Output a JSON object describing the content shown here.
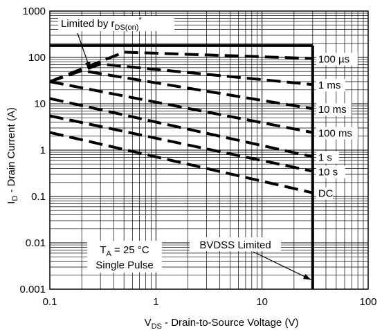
{
  "chart_data": {
    "type": "line",
    "x_scale": "log",
    "y_scale": "log",
    "xlim": [
      0.1,
      100
    ],
    "ylim": [
      0.001,
      1000
    ],
    "x_ticks": [
      "0.1",
      "1",
      "10",
      "100"
    ],
    "y_ticks": [
      "1000",
      "100",
      "10",
      "1",
      "0.1",
      "0.01",
      "0.001"
    ],
    "xlabel": {
      "main": "V",
      "sub": "DS",
      "rest": " -  Drain-to-Source Voltage (V)"
    },
    "ylabel": {
      "main": "I",
      "sub": "D",
      "rest": " -  Drain Current (A)"
    },
    "grid": true,
    "limits": [
      {
        "kind": "current",
        "points": [
          [
            0.1,
            180
          ],
          [
            30,
            180
          ]
        ]
      },
      {
        "kind": "voltage",
        "points": [
          [
            30,
            180
          ],
          [
            30,
            0.001
          ]
        ]
      }
    ],
    "series": [
      {
        "name": "100 µs",
        "label": "100 µs",
        "points": [
          [
            0.1,
            30
          ],
          [
            0.5,
            130
          ],
          [
            30,
            95
          ]
        ]
      },
      {
        "name": "1 ms",
        "label": "1 ms",
        "points": [
          [
            0.1,
            30
          ],
          [
            0.3,
            72
          ],
          [
            30,
            26
          ]
        ]
      },
      {
        "name": "10 ms",
        "label": "10 ms",
        "points": [
          [
            0.1,
            30
          ],
          [
            0.2,
            52
          ],
          [
            30,
            7.8
          ]
        ]
      },
      {
        "name": "100 ms",
        "label": "100 ms",
        "points": [
          [
            0.1,
            30
          ],
          [
            30,
            2.4
          ]
        ]
      },
      {
        "name": "1 s",
        "label": "1 s",
        "points": [
          [
            0.1,
            13
          ],
          [
            30,
            0.72
          ]
        ]
      },
      {
        "name": "10 s",
        "label": "10 s",
        "points": [
          [
            0.1,
            5.5
          ],
          [
            30,
            0.35
          ]
        ]
      },
      {
        "name": "DC",
        "label": "DC",
        "points": [
          [
            0.1,
            2.4
          ],
          [
            30,
            0.12
          ]
        ]
      }
    ],
    "annotations": [
      {
        "id": "rds",
        "text_main": "Limited by r",
        "text_sub": "DS(on)",
        "text_sup": "*",
        "arrow_to": [
          0.24,
          55
        ]
      },
      {
        "id": "ta",
        "line1_main": "T",
        "line1_sub": "A",
        "line1_rest": " = 25 °C",
        "line2": "Single Pulse"
      },
      {
        "id": "bvdss",
        "text": "BVDSS Limited",
        "arrow_to": [
          29,
          0.0016
        ]
      }
    ]
  }
}
